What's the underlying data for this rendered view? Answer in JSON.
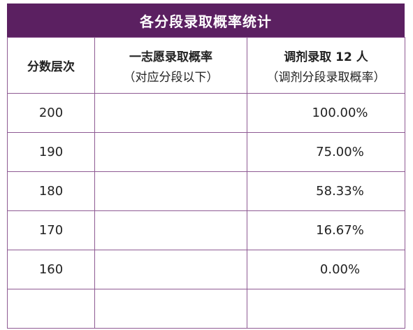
{
  "title": "各分段录取概率统计",
  "columns": {
    "level": "分数层次",
    "first_choice_line1": "一志愿录取概率",
    "first_choice_line2": "（对应分段以下）",
    "adjust_line1": "调剂录取 12 人",
    "adjust_line2": "（调剂分段录取概率）"
  },
  "rows": [
    {
      "level": "200",
      "first_choice": "",
      "adjust": "100.00%"
    },
    {
      "level": "190",
      "first_choice": "",
      "adjust": "75.00%"
    },
    {
      "level": "180",
      "first_choice": "",
      "adjust": "58.33%"
    },
    {
      "level": "170",
      "first_choice": "",
      "adjust": "16.67%"
    },
    {
      "level": "160",
      "first_choice": "",
      "adjust": "0.00%"
    },
    {
      "level": "",
      "first_choice": "",
      "adjust": ""
    }
  ],
  "colors": {
    "header_bg": "#5b2061",
    "border": "#8e5a93"
  }
}
